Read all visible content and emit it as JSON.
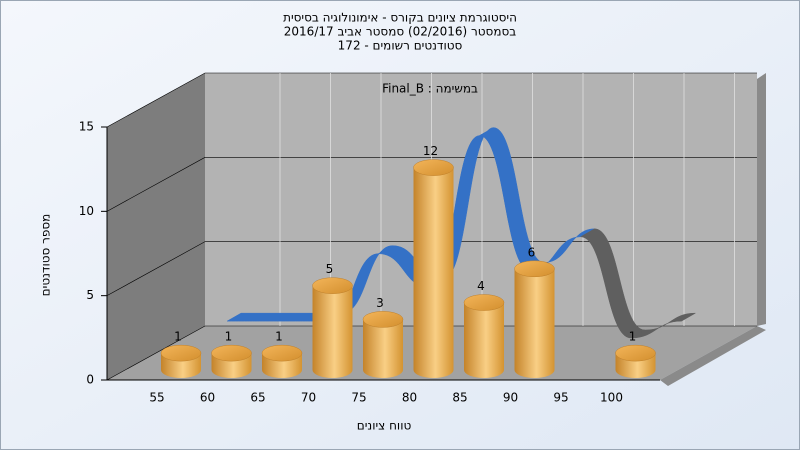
{
  "chart_data": {
    "type": "bar3d",
    "title": "היסטוגרמת ציונים בקורס - אימונולוגיה בסיסית",
    "subtitle": [
      "בסמסטר  (02/2016)  סמסטר אביב 2016/17",
      "סטודנטים רשומים - 172"
    ],
    "annotation": "במשימה : Final_B",
    "x_label": "טווח ציונים",
    "y_label": "מספר סטודנטים",
    "categories": [
      55,
      60,
      65,
      70,
      75,
      80,
      85,
      90,
      95,
      100
    ],
    "values": [
      1,
      1,
      1,
      5,
      3,
      12,
      4,
      6,
      0,
      1
    ],
    "ylim": [
      0,
      15
    ],
    "yticks": [
      0,
      5,
      10,
      15
    ],
    "grid": true,
    "color": "#e9a64a",
    "curve_color": "#3471c6",
    "curve_tail_color": "#5f5f5f"
  }
}
